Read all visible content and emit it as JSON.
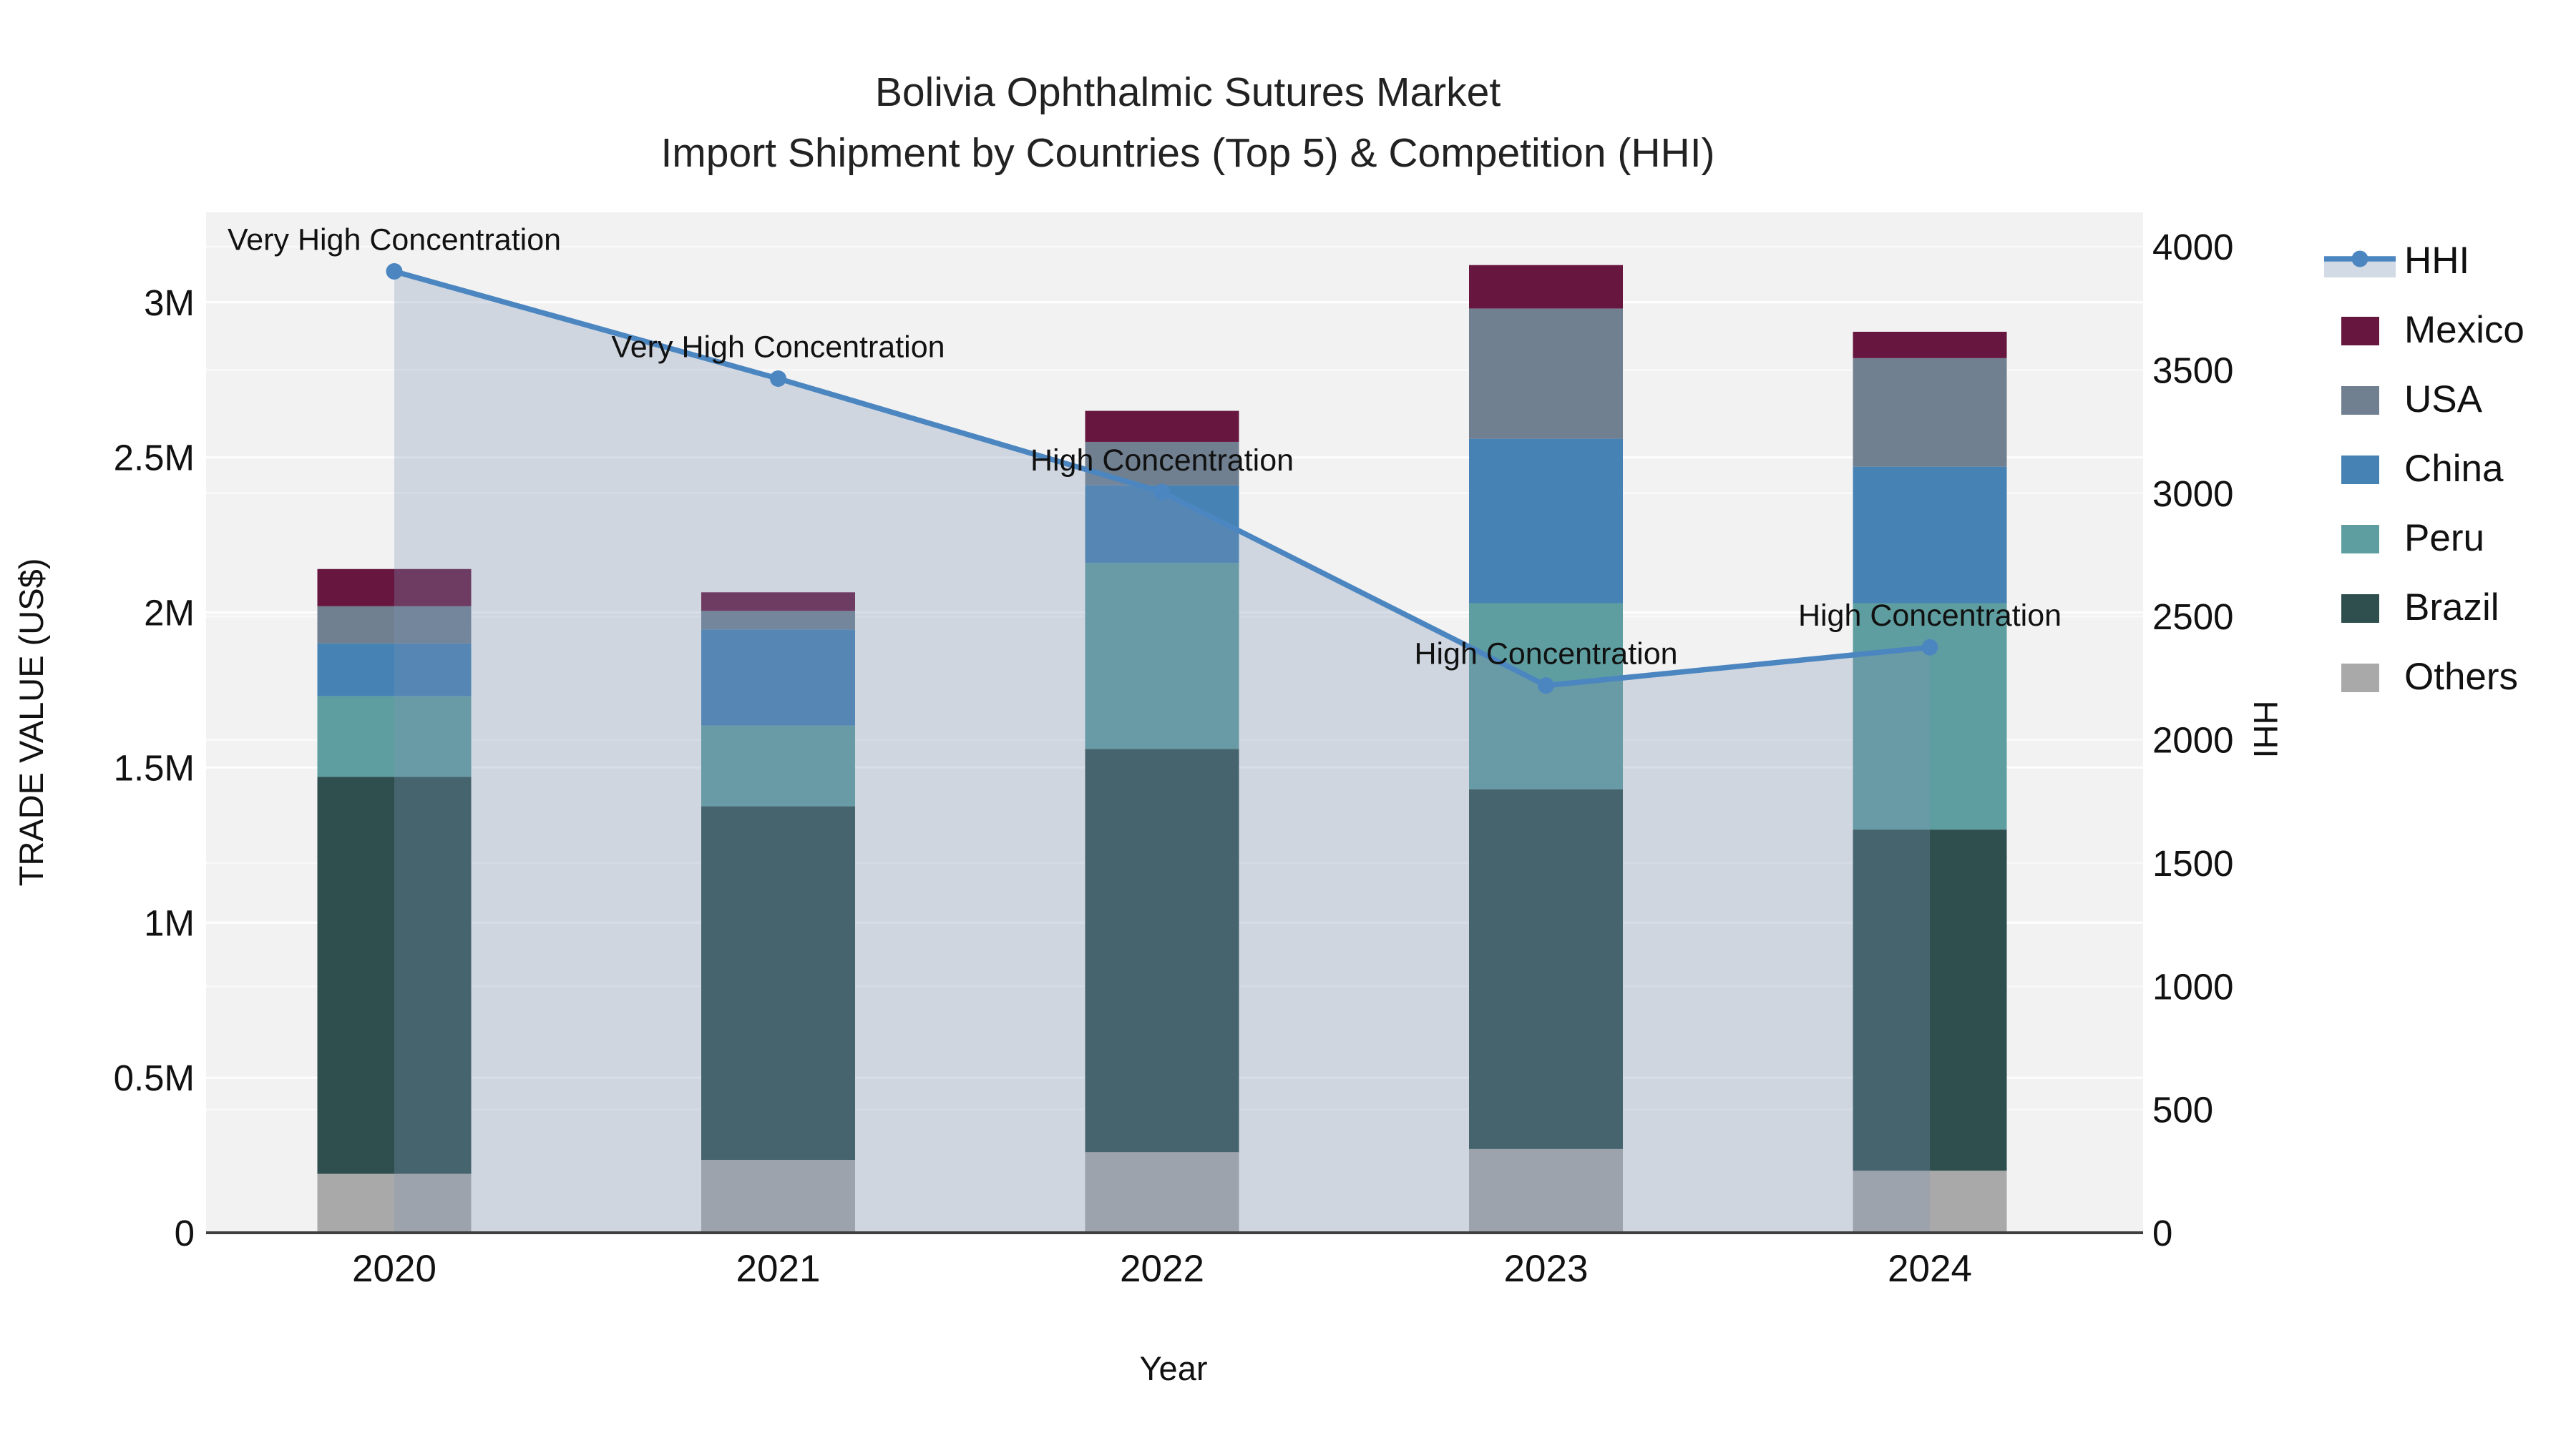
{
  "title": {
    "line1": "Bolivia Ophthalmic Sutures Market",
    "line2": "Import Shipment by Countries (Top 5) & Competition (HHI)"
  },
  "axes": {
    "left": {
      "title": "TRADE VALUE (US$)",
      "unit": "million USD",
      "ticks": [
        {
          "value": 0,
          "label": "0"
        },
        {
          "value": 0.5,
          "label": "0.5M"
        },
        {
          "value": 1,
          "label": "1M"
        },
        {
          "value": 1.5,
          "label": "1.5M"
        },
        {
          "value": 2,
          "label": "2M"
        },
        {
          "value": 2.5,
          "label": "2.5M"
        },
        {
          "value": 3,
          "label": "3M"
        }
      ]
    },
    "right": {
      "title": "HHI",
      "ticks": [
        {
          "value": 0,
          "label": "0"
        },
        {
          "value": 500,
          "label": "500"
        },
        {
          "value": 1000,
          "label": "1000"
        },
        {
          "value": 1500,
          "label": "1500"
        },
        {
          "value": 2000,
          "label": "2000"
        },
        {
          "value": 2500,
          "label": "2500"
        },
        {
          "value": 3000,
          "label": "3000"
        },
        {
          "value": 3500,
          "label": "3500"
        },
        {
          "value": 4000,
          "label": "4000"
        }
      ]
    },
    "x": {
      "title": "Year"
    }
  },
  "legend": [
    {
      "label": "HHI",
      "type": "line",
      "color": "#4c86c0"
    },
    {
      "label": "Mexico",
      "type": "square",
      "color": "#67163f"
    },
    {
      "label": "USA",
      "type": "square",
      "color": "#708090"
    },
    {
      "label": "China",
      "type": "square",
      "color": "#4682b4"
    },
    {
      "label": "Peru",
      "type": "square",
      "color": "#5f9ea0"
    },
    {
      "label": "Brazil",
      "type": "square",
      "color": "#2f4f4f"
    },
    {
      "label": "Others",
      "type": "square",
      "color": "#a9a9a9"
    }
  ],
  "chart_data": {
    "type": "bar+line",
    "categories": [
      "2020",
      "2021",
      "2022",
      "2023",
      "2024"
    ],
    "bar_unit": "million USD",
    "stack_order_bottom_to_top": [
      "Others",
      "Brazil",
      "Peru",
      "China",
      "USA",
      "Mexico"
    ],
    "series": [
      {
        "name": "Others",
        "color": "#a9a9a9",
        "values": [
          0.19,
          0.235,
          0.26,
          0.27,
          0.2
        ]
      },
      {
        "name": "Brazil",
        "color": "#2f4f4f",
        "values": [
          1.28,
          1.14,
          1.3,
          1.16,
          1.1
        ]
      },
      {
        "name": "Peru",
        "color": "#5f9ea0",
        "values": [
          0.26,
          0.26,
          0.6,
          0.6,
          0.73
        ]
      },
      {
        "name": "China",
        "color": "#4682b4",
        "values": [
          0.17,
          0.31,
          0.25,
          0.53,
          0.44
        ]
      },
      {
        "name": "USA",
        "color": "#708090",
        "values": [
          0.12,
          0.06,
          0.14,
          0.42,
          0.35
        ]
      },
      {
        "name": "Mexico",
        "color": "#67163f",
        "values": [
          0.12,
          0.06,
          0.1,
          0.14,
          0.085
        ]
      }
    ],
    "hhi": {
      "name": "HHI",
      "color": "#4c86c0",
      "area_fill": "rgba(125,148,183,0.30)",
      "values": [
        3900,
        3465,
        3005,
        2220,
        2375
      ]
    },
    "annotations": [
      {
        "year": "2020",
        "text": "Very High Concentration"
      },
      {
        "year": "2021",
        "text": "Very High Concentration"
      },
      {
        "year": "2022",
        "text": "High Concentration"
      },
      {
        "year": "2023",
        "text": "High Concentration"
      },
      {
        "year": "2024",
        "text": "High Concentration"
      }
    ],
    "ylim_left_million": [
      0,
      3.29
    ],
    "ylim_right_hhi": [
      0,
      4145
    ],
    "grid": true,
    "legend_position": "right",
    "plot_background": "#f2f2f2",
    "gridline_color": "#ffffff"
  }
}
